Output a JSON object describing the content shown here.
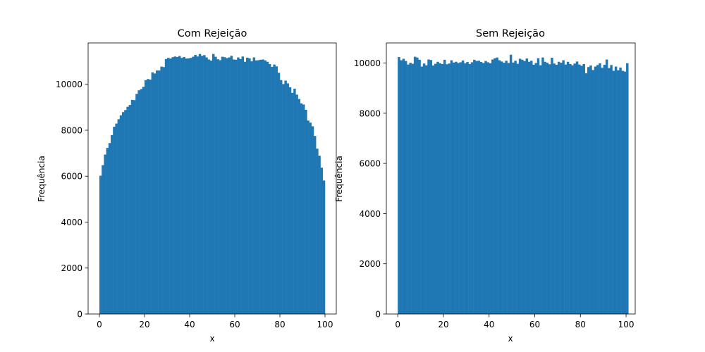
{
  "figure": {
    "bar_color": "#1f77b4",
    "frame_color": "#000000",
    "background": "#ffffff"
  },
  "chart_data": [
    {
      "type": "bar",
      "title": "Com Rejeição",
      "xlabel": "x",
      "ylabel": "Frequência",
      "bin_edges_start": 0,
      "bin_width": 1,
      "xlim": [
        -5,
        105
      ],
      "ylim": [
        0,
        11800
      ],
      "xticks": [
        0,
        20,
        40,
        60,
        80,
        100
      ],
      "yticks": [
        0,
        2000,
        4000,
        6000,
        8000,
        10000
      ],
      "grid": false,
      "values": [
        6020,
        6480,
        6940,
        7230,
        7440,
        7790,
        8150,
        8290,
        8480,
        8650,
        8790,
        8880,
        9020,
        9100,
        9320,
        9310,
        9580,
        9740,
        9790,
        9890,
        10180,
        10230,
        10200,
        10520,
        10470,
        10600,
        10600,
        10770,
        10750,
        11100,
        11150,
        11120,
        11180,
        11210,
        11190,
        11230,
        11150,
        11190,
        11120,
        11130,
        11150,
        11200,
        11280,
        11210,
        11320,
        11240,
        11270,
        11170,
        11080,
        11030,
        11320,
        11200,
        11090,
        11050,
        11200,
        11180,
        11140,
        11170,
        11240,
        11080,
        11070,
        11170,
        11100,
        11210,
        10980,
        11160,
        11130,
        11000,
        11170,
        11040,
        11050,
        11070,
        11080,
        11040,
        10980,
        10880,
        10760,
        10860,
        10780,
        10500,
        10180,
        10010,
        10160,
        10040,
        9870,
        9630,
        9810,
        9550,
        9360,
        9170,
        9120,
        8890,
        8420,
        8330,
        8170,
        7750,
        7200,
        6890,
        6370,
        5810
      ]
    },
    {
      "type": "bar",
      "title": "Sem Rejeição",
      "xlabel": "x",
      "ylabel": "Frequência",
      "bin_edges_start": 0,
      "bin_width": 1,
      "xlim": [
        -5,
        104
      ],
      "ylim": [
        0,
        10800
      ],
      "xticks": [
        0,
        20,
        40,
        60,
        80,
        100
      ],
      "yticks": [
        0,
        2000,
        4000,
        6000,
        8000,
        10000
      ],
      "grid": false,
      "values": [
        10240,
        10110,
        10170,
        10080,
        9940,
        10010,
        9970,
        10250,
        10220,
        10130,
        9860,
        9980,
        9910,
        10140,
        10120,
        9900,
        9970,
        10050,
        9990,
        9960,
        10130,
        9950,
        9980,
        10110,
        10020,
        10050,
        10000,
        10030,
        10100,
        9990,
        10040,
        9960,
        10030,
        10130,
        10080,
        10090,
        10040,
        10000,
        10080,
        10030,
        9990,
        10140,
        10190,
        10220,
        10110,
        10060,
        10010,
        10090,
        10000,
        10330,
        10020,
        10090,
        9970,
        10170,
        10130,
        10080,
        10180,
        10050,
        10090,
        9930,
        10000,
        10190,
        9910,
        10220,
        10050,
        10010,
        9950,
        10210,
        9980,
        9930,
        10050,
        10010,
        10110,
        9940,
        10050,
        9960,
        9910,
        9980,
        10060,
        9940,
        9890,
        9960,
        9590,
        9840,
        9900,
        9720,
        9860,
        9920,
        9990,
        9810,
        9930,
        10140,
        9800,
        9920,
        9690,
        9860,
        9710,
        9820,
        9690,
        9660,
        9990
      ]
    }
  ]
}
